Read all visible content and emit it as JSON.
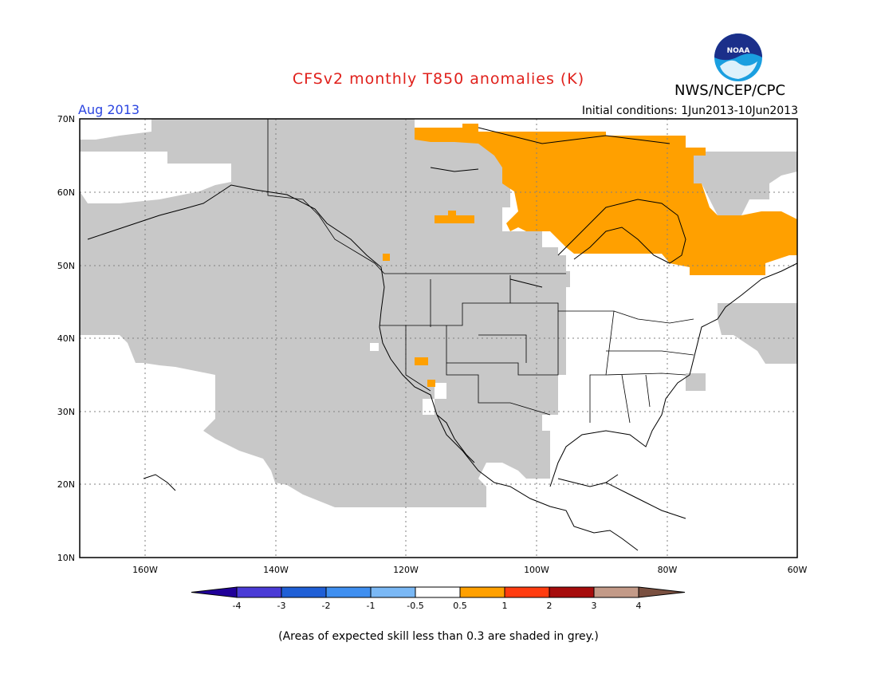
{
  "header": {
    "title": "CFSv2 monthly T850 anomalies (K)",
    "month": "Aug 2013",
    "initial_conditions": "Initial conditions: 1Jun2013-10Jun2013",
    "agency": "NWS/NCEP/CPC",
    "logo_text": "NOAA"
  },
  "map": {
    "lat_labels": [
      "70N",
      "60N",
      "50N",
      "40N",
      "30N",
      "20N",
      "10N"
    ],
    "lon_labels": [
      "160W",
      "140W",
      "120W",
      "100W",
      "80W",
      "60W"
    ],
    "colors": {
      "skill_shading": "#c8c8c8",
      "warm_anomaly": "#ffa000",
      "coastline": "#000000"
    }
  },
  "legend": {
    "labels": [
      "-4",
      "-3",
      "-2",
      "-1",
      "-0.5",
      "0.5",
      "1",
      "2",
      "3",
      "4"
    ],
    "colors": [
      "#200099",
      "#4a3bd6",
      "#1f5fd6",
      "#3f8ff0",
      "#7ab8f5",
      "#ffffff",
      "#ffa000",
      "#ff3c10",
      "#a60c0c",
      "#c39a88",
      "#7a5040"
    ]
  },
  "footnote": "(Areas of expected skill less than 0.3 are shaded in grey.)"
}
